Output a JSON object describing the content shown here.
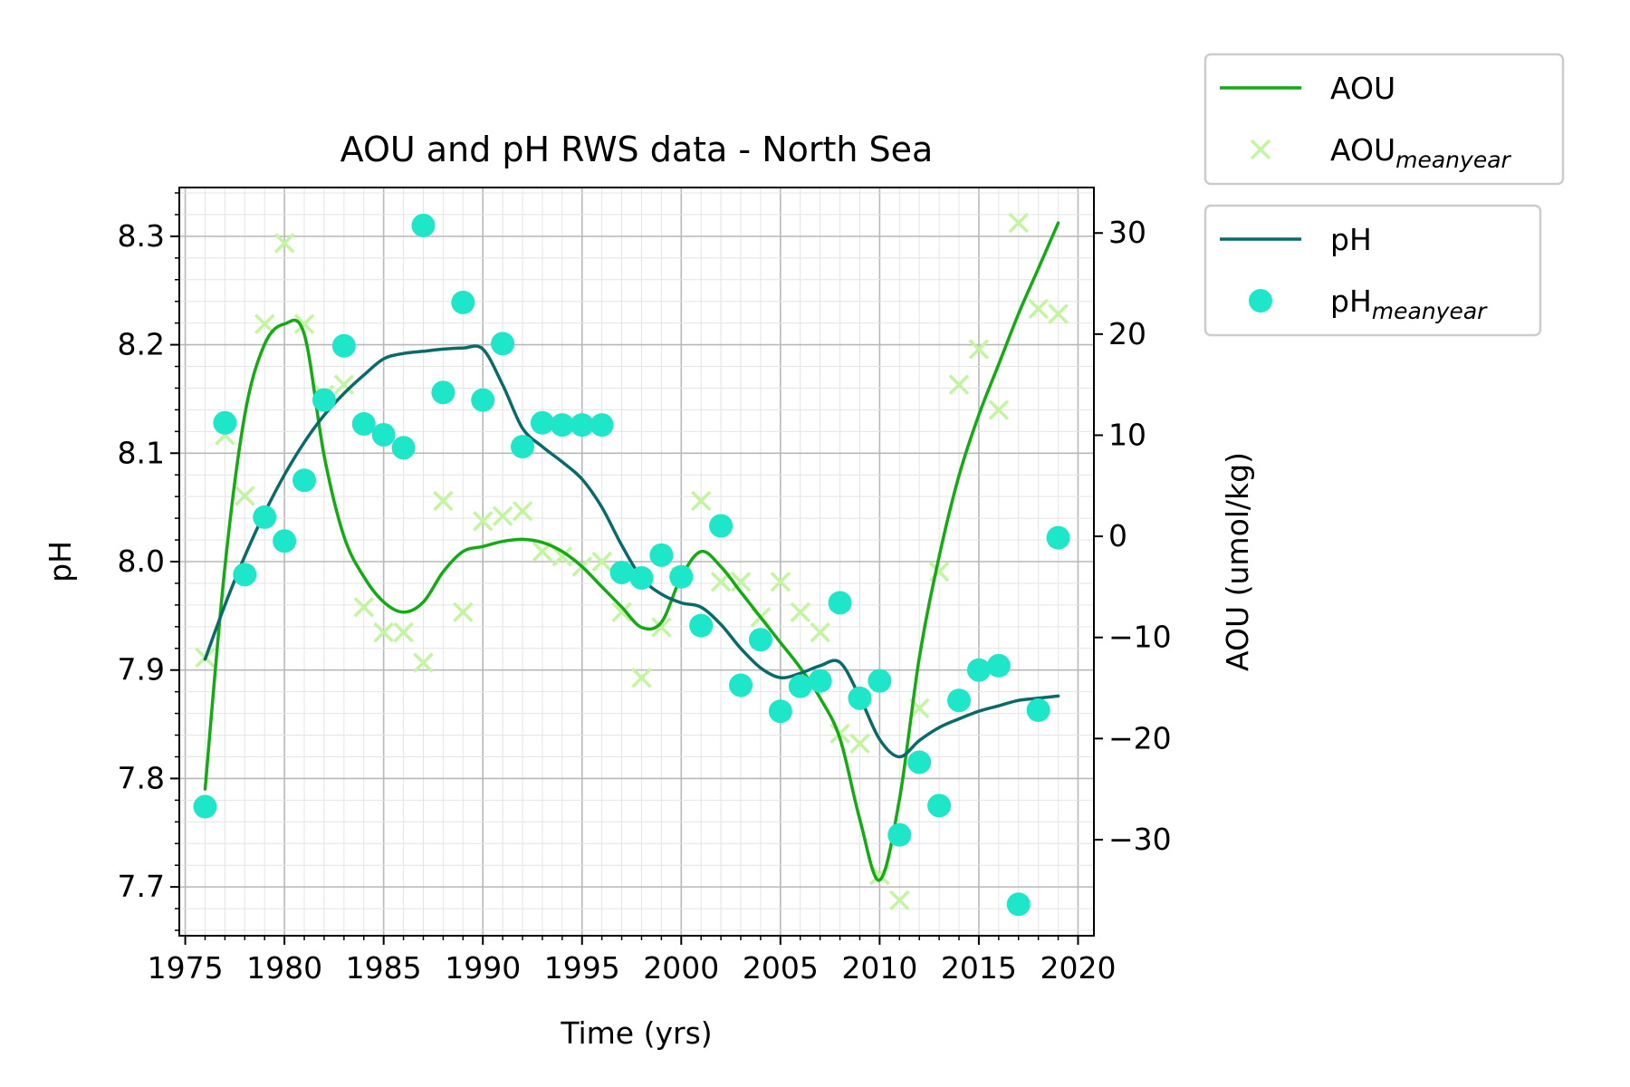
{
  "chart_data": {
    "type": "line",
    "title": "AOU and pH RWS data - North Sea",
    "xlabel": "Time (yrs)",
    "ylabel": "pH",
    "y2label": "AOU (umol/kg)",
    "xlim": [
      1974.7,
      2020.8
    ],
    "ylim": [
      7.655,
      8.345
    ],
    "y2lim": [
      -39.5,
      34.5
    ],
    "x_ticks": [
      1975,
      1980,
      1985,
      1990,
      1995,
      2000,
      2005,
      2010,
      2015,
      2020
    ],
    "x_tick_labels": [
      "1975",
      "1980",
      "1985",
      "1990",
      "1995",
      "2000",
      "2005",
      "2010",
      "2015",
      "2020"
    ],
    "y_ticks": [
      7.7,
      7.8,
      7.9,
      8.0,
      8.1,
      8.2,
      8.3
    ],
    "y_tick_labels": [
      "7.7",
      "7.8",
      "7.9",
      "8.0",
      "8.1",
      "8.2",
      "8.3"
    ],
    "y2_ticks": [
      -30,
      -20,
      -10,
      0,
      10,
      20,
      30
    ],
    "y2_tick_labels": [
      "−30",
      "−20",
      "−10",
      "0",
      "10",
      "20",
      "30"
    ],
    "grid": true,
    "legend": [
      {
        "location": "outside-upper-right",
        "entries": [
          {
            "label": "AOU",
            "sub": "",
            "marker": "line",
            "color": "#14aa14"
          },
          {
            "label": "AOU",
            "sub": "meanyear",
            "marker": "x",
            "color": "#c3f5a0"
          }
        ]
      },
      {
        "location": "outside-right",
        "entries": [
          {
            "label": "pH",
            "sub": "",
            "marker": "line",
            "color": "#0a6a6a"
          },
          {
            "label": "pH",
            "sub": "meanyear",
            "marker": "circle",
            "color": "#1ee6c8"
          }
        ]
      }
    ],
    "series": [
      {
        "name": "AOU",
        "axis": "right",
        "kind": "line",
        "color": "#14aa14",
        "x": [
          1976,
          1977,
          1978,
          1979,
          1980,
          1981,
          1982,
          1983,
          1984,
          1985,
          1986,
          1987,
          1988,
          1989,
          1990,
          1991,
          1992,
          1993,
          1994,
          1995,
          1996,
          1997,
          1998,
          1999,
          2000,
          2001,
          2002,
          2003,
          2004,
          2005,
          2006,
          2007,
          2008,
          2009,
          2010,
          2011,
          2012,
          2013,
          2014,
          2015,
          2016,
          2017,
          2018,
          2019
        ],
        "y": [
          -25,
          -3,
          12,
          19,
          21,
          20,
          8,
          0,
          -4,
          -6.5,
          -7.5,
          -6.5,
          -3.5,
          -1.5,
          -1,
          -0.5,
          -0.3,
          -0.6,
          -1.5,
          -3,
          -5,
          -7,
          -9,
          -8.5,
          -4,
          -1.5,
          -3,
          -5.5,
          -8,
          -10.5,
          -13,
          -16,
          -20,
          -28,
          -34,
          -26,
          -12,
          -2,
          6,
          12,
          17,
          22,
          26.5,
          31
        ]
      },
      {
        "name": "AOU_meanyear",
        "axis": "right",
        "kind": "scatter",
        "marker": "x",
        "color": "#c3f5a0",
        "x": [
          1976,
          1977,
          1978,
          1979,
          1980,
          1981,
          1982,
          1983,
          1984,
          1985,
          1986,
          1987,
          1988,
          1989,
          1990,
          1991,
          1992,
          1993,
          1994,
          1995,
          1996,
          1997,
          1998,
          1999,
          2000,
          2001,
          2002,
          2003,
          2004,
          2005,
          2006,
          2007,
          2008,
          2009,
          2010,
          2011,
          2012,
          2013,
          2014,
          2015,
          2016,
          2017,
          2018,
          2019
        ],
        "y": [
          -12,
          10,
          4,
          21,
          29,
          21,
          14,
          15,
          -7,
          -9.5,
          -9.5,
          -12.5,
          3.5,
          -7.5,
          1.5,
          2,
          2.5,
          -1.5,
          -2,
          -3,
          -2.5,
          -7.5,
          -14,
          -9,
          -4,
          3.5,
          -4.5,
          -4.5,
          -8,
          -4.5,
          -7.5,
          -9.5,
          -19.5,
          -20.5,
          -33.5,
          -36,
          -17,
          -3.5,
          15,
          18.5,
          12.5,
          31,
          22.5,
          22
        ]
      },
      {
        "name": "pH",
        "axis": "left",
        "kind": "line",
        "color": "#0a6a6a",
        "x": [
          1976,
          1977,
          1978,
          1979,
          1980,
          1981,
          1982,
          1983,
          1984,
          1985,
          1986,
          1987,
          1988,
          1989,
          1990,
          1991,
          1992,
          1993,
          1994,
          1995,
          1996,
          1997,
          1998,
          1999,
          2000,
          2001,
          2002,
          2003,
          2004,
          2005,
          2006,
          2007,
          2008,
          2009,
          2010,
          2011,
          2012,
          2013,
          2014,
          2015,
          2016,
          2017,
          2018,
          2019
        ],
        "y": [
          7.91,
          7.96,
          8.005,
          8.045,
          8.08,
          8.11,
          8.135,
          8.155,
          8.172,
          8.187,
          8.192,
          8.194,
          8.196,
          8.197,
          8.196,
          8.163,
          8.123,
          8.106,
          8.092,
          8.076,
          8.05,
          8.015,
          7.985,
          7.97,
          7.962,
          7.958,
          7.942,
          7.92,
          7.902,
          7.893,
          7.897,
          7.904,
          7.907,
          7.875,
          7.836,
          7.82,
          7.835,
          7.847,
          7.855,
          7.862,
          7.867,
          7.872,
          7.874,
          7.876
        ]
      },
      {
        "name": "pH_meanyear",
        "axis": "left",
        "kind": "scatter",
        "marker": "circle",
        "color": "#1ee6c8",
        "x": [
          1976,
          1977,
          1978,
          1979,
          1980,
          1981,
          1982,
          1983,
          1984,
          1985,
          1986,
          1987,
          1988,
          1989,
          1990,
          1991,
          1992,
          1993,
          1994,
          1995,
          1996,
          1997,
          1998,
          1999,
          2000,
          2001,
          2002,
          2003,
          2004,
          2005,
          2006,
          2007,
          2008,
          2009,
          2010,
          2011,
          2012,
          2013,
          2014,
          2015,
          2016,
          2017,
          2018,
          2019
        ],
        "y": [
          7.774,
          8.128,
          7.988,
          8.041,
          8.019,
          8.075,
          8.149,
          8.199,
          8.127,
          8.117,
          8.105,
          8.31,
          8.156,
          8.239,
          8.149,
          8.201,
          8.106,
          8.128,
          8.126,
          8.126,
          8.126,
          7.99,
          7.985,
          8.006,
          7.986,
          7.941,
          8.033,
          7.886,
          7.928,
          7.862,
          7.885,
          7.89,
          7.962,
          7.874,
          7.89,
          7.748,
          7.815,
          7.775,
          7.872,
          7.9,
          7.904,
          7.684,
          7.863,
          8.022
        ]
      }
    ]
  }
}
